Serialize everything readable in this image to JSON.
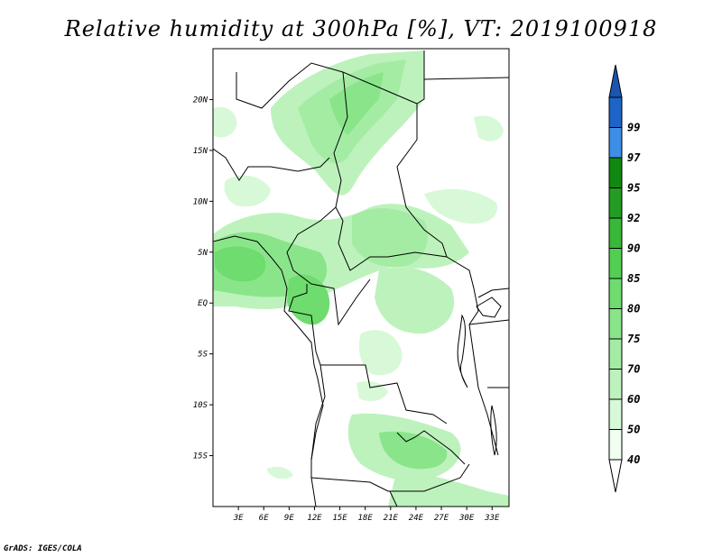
{
  "title": "Relative humidity at 300hPa [%], VT: 2019100918",
  "credit": "GrADS: IGES/COLA",
  "map": {
    "lon_range": [
      0,
      35
    ],
    "lat_range": [
      -20,
      25
    ],
    "lat_ticks": [
      {
        "value": 20,
        "label": "20N"
      },
      {
        "value": 15,
        "label": "15N"
      },
      {
        "value": 10,
        "label": "10N"
      },
      {
        "value": 5,
        "label": "5N"
      },
      {
        "value": 0,
        "label": "EQ"
      },
      {
        "value": -5,
        "label": "5S"
      },
      {
        "value": -10,
        "label": "10S"
      },
      {
        "value": -15,
        "label": "15S"
      }
    ],
    "lon_ticks": [
      {
        "value": 3,
        "label": "3E"
      },
      {
        "value": 6,
        "label": "6E"
      },
      {
        "value": 9,
        "label": "9E"
      },
      {
        "value": 12,
        "label": "12E"
      },
      {
        "value": 15,
        "label": "15E"
      },
      {
        "value": 18,
        "label": "18E"
      },
      {
        "value": 21,
        "label": "21E"
      },
      {
        "value": 24,
        "label": "24E"
      },
      {
        "value": 27,
        "label": "27E"
      },
      {
        "value": 30,
        "label": "30E"
      },
      {
        "value": 33,
        "label": "33E"
      }
    ]
  },
  "colorbar": {
    "bins": [
      {
        "label": "40",
        "color": "#f0fff0"
      },
      {
        "label": "50",
        "color": "#d7f9d7"
      },
      {
        "label": "60",
        "color": "#bdf2bd"
      },
      {
        "label": "70",
        "color": "#a4eca4"
      },
      {
        "label": "75",
        "color": "#8ae58a"
      },
      {
        "label": "80",
        "color": "#6edc6e"
      },
      {
        "label": "85",
        "color": "#52cf52"
      },
      {
        "label": "90",
        "color": "#38b838"
      },
      {
        "label": "92",
        "color": "#249b24"
      },
      {
        "label": "95",
        "color": "#118811"
      },
      {
        "label": "97",
        "color": "#3c8ee6"
      },
      {
        "label": "99",
        "color": "#1e64c8"
      }
    ],
    "top_arrow_color": "#1a55b0",
    "bottom_arrow_color": "#ffffff"
  }
}
